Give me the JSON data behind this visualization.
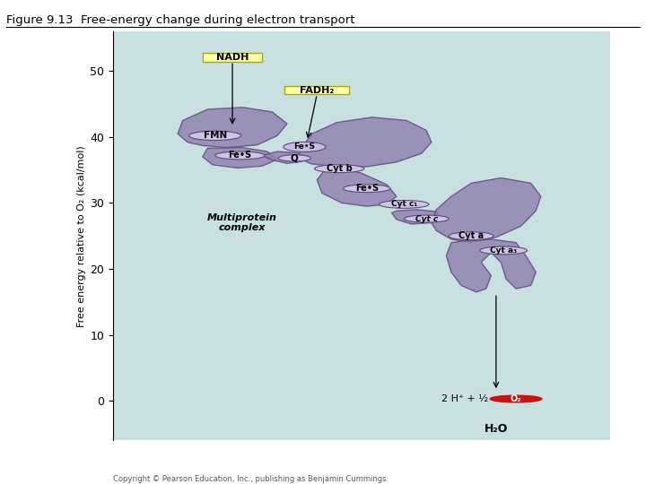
{
  "title": "Figure 9.13  Free-energy change during electron transport",
  "ylabel": "Free energy relative to O₂ (kcal/mol)",
  "bg_color": "#c8e0e0",
  "ylim": [
    -6,
    56
  ],
  "xlim": [
    0,
    10
  ],
  "yticks": [
    0,
    10,
    20,
    30,
    40,
    50
  ],
  "blob_color": "#9080b0",
  "blob_edge": "#5a4a7a",
  "blob_alpha": 0.82,
  "ellipse_face": "#d0c4e4",
  "ellipse_edge": "#5a4a7a",
  "yellow_face": "#ffffaa",
  "yellow_edge": "#aaaa00",
  "red_o2": "#cc1111",
  "copyright": "Copyright © Pearson Education, Inc., publishing as Benjamin Cummings."
}
